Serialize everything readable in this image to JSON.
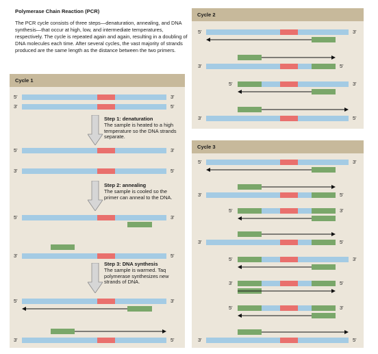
{
  "title": "Polymerase Chain Reaction (PCR)",
  "intro": "The PCR cycle consists of three steps—denaturation, annealing, and DNA synthesis—that occur at high, low, and intermediate temperatures, respectively. The cycle is repeated again and again, resulting in a doubling of DNA molecules each time. After several cycles, the vast majority of strands produced are the same length as the distance between the two primers.",
  "cycles": {
    "cycle1": "Cycle 1",
    "cycle2": "Cycle 2",
    "cycle3": "Cycle 3"
  },
  "ends": {
    "five": "5'",
    "three": "3'"
  },
  "steps": [
    {
      "name": "Step 1: denaturation",
      "desc": "The sample is heated to a high temperature so the DNA strands separate."
    },
    {
      "name": "Step 2: annealing",
      "desc": "The sample is cooled so the primer can anneal to the DNA."
    },
    {
      "name": "Step 3: DNA synthesis",
      "desc": "The sample is warmed. Taq polymerase synthesizes new strands of DNA."
    }
  ],
  "colors": {
    "strand": "#a4cbe4",
    "target": "#e9706d",
    "primer": "#7aa76a",
    "panel": "#ece6da",
    "panel_header": "#c7b99b"
  }
}
